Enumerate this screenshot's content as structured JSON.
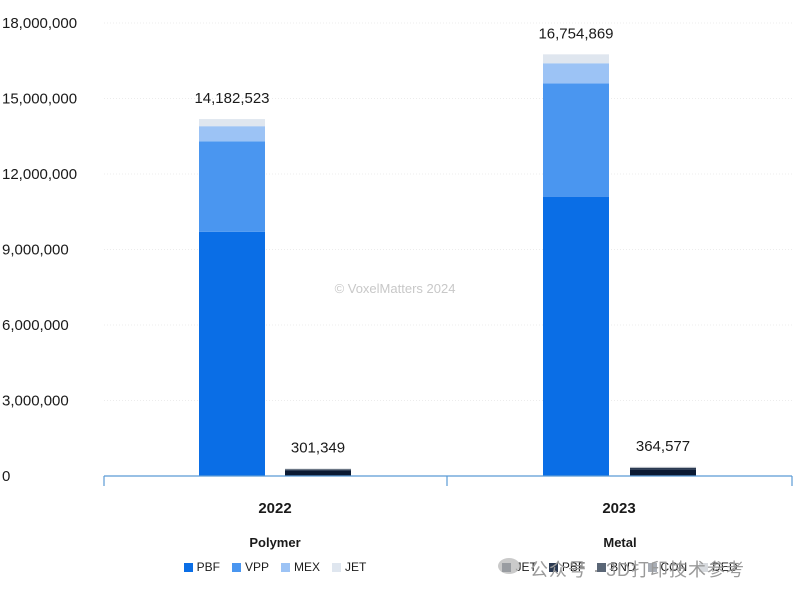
{
  "chart_data": {
    "type": "bar",
    "stacked": true,
    "categories": [
      "2022",
      "2023"
    ],
    "groups": [
      {
        "name": "Polymer",
        "series": [
          {
            "name": "PBF",
            "color": "#0a6ee6",
            "values": [
              9700000,
              11100000
            ]
          },
          {
            "name": "VPP",
            "color": "#4a96f0",
            "values": [
              3600000,
              4500000
            ]
          },
          {
            "name": "MEX",
            "color": "#9cc3f5",
            "values": [
              600000,
              800000
            ]
          },
          {
            "name": "JET",
            "color": "#dfe6ef",
            "values": [
              282523,
              354869
            ]
          }
        ],
        "totals": [
          "14,182,523",
          "16,754,869"
        ]
      },
      {
        "name": "Metal",
        "series": [
          {
            "name": "JET",
            "color": "#0b1a33",
            "values": [
              200000,
              240000
            ]
          },
          {
            "name": "PBF",
            "color": "#2b3a52",
            "values": [
              70000,
              90000
            ]
          },
          {
            "name": "BND",
            "color": "#5a6676",
            "values": [
              20000,
              22000
            ]
          },
          {
            "name": "CON",
            "color": "#a8adb5",
            "values": [
              6000,
              7000
            ]
          },
          {
            "name": "DED",
            "color": "#d7dade",
            "values": [
              5349,
              5577
            ]
          }
        ],
        "totals": [
          "301,349",
          "364,577"
        ]
      }
    ],
    "yticks": [
      "0",
      "3,000,000",
      "6,000,000",
      "9,000,000",
      "12,000,000",
      "15,000,000",
      "18,000,000"
    ],
    "ylim": [
      0,
      18000000
    ],
    "grid": true,
    "legend_position": "bottom",
    "watermark": "© VoxelMatters 2024",
    "axis_color": "#5b9bd5"
  },
  "overlay": {
    "corner_text": "公众号 · 3D打印技术参考"
  }
}
